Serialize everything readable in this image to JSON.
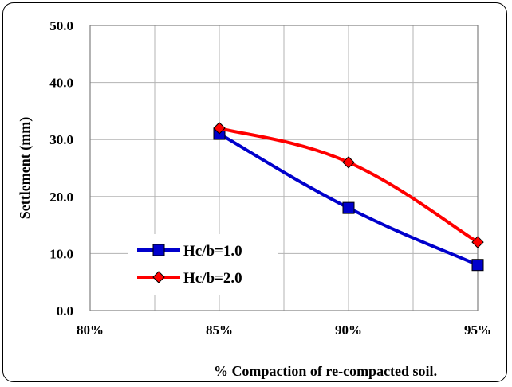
{
  "chart_data": {
    "type": "line",
    "title": "",
    "xlabel": "% Compaction of re-compacted soil.",
    "ylabel": "Settlement (mm)",
    "x_tick_labels": [
      "80%",
      "85%",
      "90%",
      "95%"
    ],
    "y_tick_labels": [
      "0.0",
      "10.0",
      "20.0",
      "30.0",
      "40.0",
      "50.0"
    ],
    "xlim": [
      80,
      95
    ],
    "ylim": [
      0,
      50
    ],
    "grid": true,
    "legend_position": "lower-left",
    "series": [
      {
        "name": "Hc/b=1.0",
        "x": [
          85,
          90,
          95
        ],
        "values": [
          31,
          18,
          8
        ],
        "color": "#0000cc",
        "marker": "square"
      },
      {
        "name": "Hc/b=2.0",
        "x": [
          85,
          90,
          95
        ],
        "values": [
          32,
          26,
          12
        ],
        "color": "#ff0000",
        "marker": "diamond"
      }
    ]
  }
}
